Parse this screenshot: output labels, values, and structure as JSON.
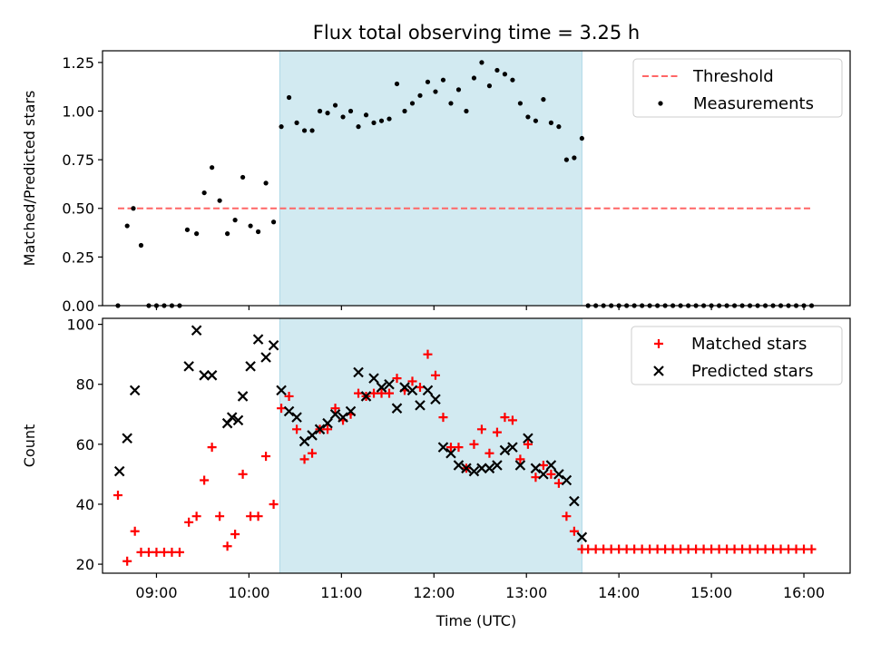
{
  "title": "Flux total observing time = 3.25 h",
  "colors": {
    "highlight": "#add8e6",
    "threshold": "#ff6666",
    "measurements": "#000000",
    "matched": "#ff0000",
    "predicted": "#000000"
  },
  "chart_data": [
    {
      "type": "scatter",
      "ylabel": "Matched/Predicted stars",
      "xlabel": "",
      "xlim": [
        "08:25",
        "16:30"
      ],
      "ylim": [
        0,
        1.31
      ],
      "yticks": [
        0.0,
        0.25,
        0.5,
        0.75,
        1.0,
        1.25
      ],
      "ytick_labels": [
        "0.00",
        "0.25",
        "0.50",
        "0.75",
        "1.00",
        "1.25"
      ],
      "highlight_span": [
        "10:20",
        "13:36"
      ],
      "legend": {
        "position": "top-right",
        "entries": [
          "Threshold",
          "Measurements"
        ]
      },
      "threshold": {
        "name": "Threshold",
        "y": 0.5,
        "x": [
          "08:35",
          "16:05"
        ],
        "style": "dashed"
      },
      "series": [
        {
          "name": "Measurements",
          "marker": "dot",
          "points": [
            [
              "08:35",
              0.0
            ],
            [
              "08:41",
              0.41
            ],
            [
              "08:45",
              0.5
            ],
            [
              "08:50",
              0.31
            ],
            [
              "08:55",
              0.0
            ],
            [
              "09:00",
              0.0
            ],
            [
              "09:05",
              0.0
            ],
            [
              "09:10",
              0.0
            ],
            [
              "09:15",
              0.0
            ],
            [
              "09:20",
              0.39
            ],
            [
              "09:26",
              0.37
            ],
            [
              "09:31",
              0.58
            ],
            [
              "09:36",
              0.71
            ],
            [
              "09:41",
              0.54
            ],
            [
              "09:46",
              0.37
            ],
            [
              "09:51",
              0.44
            ],
            [
              "09:56",
              0.66
            ],
            [
              "10:01",
              0.41
            ],
            [
              "10:06",
              0.38
            ],
            [
              "10:11",
              0.63
            ],
            [
              "10:16",
              0.43
            ],
            [
              "10:21",
              0.92
            ],
            [
              "10:26",
              1.07
            ],
            [
              "10:31",
              0.94
            ],
            [
              "10:36",
              0.9
            ],
            [
              "10:41",
              0.9
            ],
            [
              "10:46",
              1.0
            ],
            [
              "10:51",
              0.99
            ],
            [
              "10:56",
              1.03
            ],
            [
              "11:01",
              0.97
            ],
            [
              "11:06",
              1.0
            ],
            [
              "11:11",
              0.92
            ],
            [
              "11:16",
              0.98
            ],
            [
              "11:21",
              0.94
            ],
            [
              "11:26",
              0.95
            ],
            [
              "11:31",
              0.96
            ],
            [
              "11:36",
              1.14
            ],
            [
              "11:41",
              1.0
            ],
            [
              "11:46",
              1.04
            ],
            [
              "11:51",
              1.08
            ],
            [
              "11:56",
              1.15
            ],
            [
              "12:01",
              1.1
            ],
            [
              "12:06",
              1.16
            ],
            [
              "12:11",
              1.04
            ],
            [
              "12:16",
              1.11
            ],
            [
              "12:21",
              1.0
            ],
            [
              "12:26",
              1.17
            ],
            [
              "12:31",
              1.25
            ],
            [
              "12:36",
              1.13
            ],
            [
              "12:41",
              1.21
            ],
            [
              "12:46",
              1.19
            ],
            [
              "12:51",
              1.16
            ],
            [
              "12:56",
              1.04
            ],
            [
              "13:01",
              0.97
            ],
            [
              "13:06",
              0.95
            ],
            [
              "13:11",
              1.06
            ],
            [
              "13:16",
              0.94
            ],
            [
              "13:21",
              0.92
            ],
            [
              "13:26",
              0.75
            ],
            [
              "13:31",
              0.76
            ],
            [
              "13:36",
              0.86
            ],
            [
              "13:40",
              0.0
            ],
            [
              "13:45",
              0.0
            ],
            [
              "13:50",
              0.0
            ],
            [
              "13:55",
              0.0
            ],
            [
              "14:00",
              0.0
            ],
            [
              "14:05",
              0.0
            ],
            [
              "14:10",
              0.0
            ],
            [
              "14:15",
              0.0
            ],
            [
              "14:20",
              0.0
            ],
            [
              "14:25",
              0.0
            ],
            [
              "14:30",
              0.0
            ],
            [
              "14:35",
              0.0
            ],
            [
              "14:40",
              0.0
            ],
            [
              "14:45",
              0.0
            ],
            [
              "14:50",
              0.0
            ],
            [
              "14:55",
              0.0
            ],
            [
              "15:00",
              0.0
            ],
            [
              "15:05",
              0.0
            ],
            [
              "15:10",
              0.0
            ],
            [
              "15:15",
              0.0
            ],
            [
              "15:20",
              0.0
            ],
            [
              "15:25",
              0.0
            ],
            [
              "15:30",
              0.0
            ],
            [
              "15:35",
              0.0
            ],
            [
              "15:40",
              0.0
            ],
            [
              "15:45",
              0.0
            ],
            [
              "15:50",
              0.0
            ],
            [
              "15:55",
              0.0
            ],
            [
              "16:00",
              0.0
            ],
            [
              "16:05",
              0.0
            ]
          ]
        }
      ]
    },
    {
      "type": "scatter",
      "ylabel": "Count",
      "xlabel": "Time (UTC)",
      "xlim": [
        "08:25",
        "16:30"
      ],
      "ylim": [
        17,
        102
      ],
      "yticks": [
        20,
        40,
        60,
        80,
        100
      ],
      "ytick_labels": [
        "20",
        "40",
        "60",
        "80",
        "100"
      ],
      "xticks": [
        "09:00",
        "10:00",
        "11:00",
        "12:00",
        "13:00",
        "14:00",
        "15:00",
        "16:00"
      ],
      "xtick_labels": [
        "09:00",
        "10:00",
        "11:00",
        "12:00",
        "13:00",
        "14:00",
        "15:00",
        "16:00"
      ],
      "highlight_span": [
        "10:20",
        "13:36"
      ],
      "legend": {
        "position": "top-right",
        "entries": [
          "Matched stars",
          "Predicted stars"
        ]
      },
      "series": [
        {
          "name": "Matched stars",
          "marker": "plus",
          "points": [
            [
              "08:35",
              43
            ],
            [
              "08:41",
              21
            ],
            [
              "08:46",
              31
            ],
            [
              "08:50",
              24
            ],
            [
              "08:55",
              24
            ],
            [
              "09:00",
              24
            ],
            [
              "09:05",
              24
            ],
            [
              "09:10",
              24
            ],
            [
              "09:15",
              24
            ],
            [
              "09:21",
              34
            ],
            [
              "09:26",
              36
            ],
            [
              "09:31",
              48
            ],
            [
              "09:36",
              59
            ],
            [
              "09:41",
              36
            ],
            [
              "09:46",
              26
            ],
            [
              "09:51",
              30
            ],
            [
              "09:56",
              50
            ],
            [
              "10:01",
              36
            ],
            [
              "10:06",
              36
            ],
            [
              "10:11",
              56
            ],
            [
              "10:16",
              40
            ],
            [
              "10:21",
              72
            ],
            [
              "10:26",
              76
            ],
            [
              "10:31",
              65
            ],
            [
              "10:36",
              55
            ],
            [
              "10:41",
              57
            ],
            [
              "10:46",
              65
            ],
            [
              "10:51",
              65
            ],
            [
              "10:56",
              72
            ],
            [
              "11:01",
              68
            ],
            [
              "11:06",
              70
            ],
            [
              "11:11",
              77
            ],
            [
              "11:16",
              76
            ],
            [
              "11:21",
              77
            ],
            [
              "11:26",
              77
            ],
            [
              "11:31",
              77
            ],
            [
              "11:36",
              82
            ],
            [
              "11:41",
              78
            ],
            [
              "11:46",
              81
            ],
            [
              "11:51",
              79
            ],
            [
              "11:56",
              90
            ],
            [
              "12:01",
              83
            ],
            [
              "12:06",
              69
            ],
            [
              "12:11",
              59
            ],
            [
              "12:16",
              59
            ],
            [
              "12:21",
              52
            ],
            [
              "12:26",
              60
            ],
            [
              "12:31",
              65
            ],
            [
              "12:36",
              57
            ],
            [
              "12:41",
              64
            ],
            [
              "12:46",
              69
            ],
            [
              "12:51",
              68
            ],
            [
              "12:56",
              55
            ],
            [
              "13:01",
              60
            ],
            [
              "13:06",
              49
            ],
            [
              "13:11",
              53
            ],
            [
              "13:16",
              50
            ],
            [
              "13:21",
              47
            ],
            [
              "13:26",
              36
            ],
            [
              "13:31",
              31
            ],
            [
              "13:36",
              25
            ],
            [
              "13:40",
              25
            ],
            [
              "13:45",
              25
            ],
            [
              "13:50",
              25
            ],
            [
              "13:55",
              25
            ],
            [
              "14:00",
              25
            ],
            [
              "14:05",
              25
            ],
            [
              "14:10",
              25
            ],
            [
              "14:15",
              25
            ],
            [
              "14:20",
              25
            ],
            [
              "14:25",
              25
            ],
            [
              "14:30",
              25
            ],
            [
              "14:35",
              25
            ],
            [
              "14:40",
              25
            ],
            [
              "14:45",
              25
            ],
            [
              "14:50",
              25
            ],
            [
              "14:55",
              25
            ],
            [
              "15:00",
              25
            ],
            [
              "15:05",
              25
            ],
            [
              "15:10",
              25
            ],
            [
              "15:15",
              25
            ],
            [
              "15:20",
              25
            ],
            [
              "15:25",
              25
            ],
            [
              "15:30",
              25
            ],
            [
              "15:35",
              25
            ],
            [
              "15:40",
              25
            ],
            [
              "15:45",
              25
            ],
            [
              "15:50",
              25
            ],
            [
              "15:55",
              25
            ],
            [
              "16:00",
              25
            ],
            [
              "16:05",
              25
            ]
          ]
        },
        {
          "name": "Predicted stars",
          "marker": "x",
          "points": [
            [
              "08:36",
              51
            ],
            [
              "08:41",
              62
            ],
            [
              "08:46",
              78
            ],
            [
              "09:21",
              86
            ],
            [
              "09:26",
              98
            ],
            [
              "09:31",
              83
            ],
            [
              "09:36",
              83
            ],
            [
              "09:46",
              67
            ],
            [
              "09:49",
              69
            ],
            [
              "09:53",
              68
            ],
            [
              "09:56",
              76
            ],
            [
              "10:01",
              86
            ],
            [
              "10:06",
              95
            ],
            [
              "10:11",
              89
            ],
            [
              "10:16",
              93
            ],
            [
              "10:21",
              78
            ],
            [
              "10:26",
              71
            ],
            [
              "10:31",
              69
            ],
            [
              "10:36",
              61
            ],
            [
              "10:41",
              63
            ],
            [
              "10:46",
              65
            ],
            [
              "10:51",
              67
            ],
            [
              "10:56",
              70
            ],
            [
              "11:01",
              69
            ],
            [
              "11:06",
              71
            ],
            [
              "11:11",
              84
            ],
            [
              "11:16",
              76
            ],
            [
              "11:21",
              82
            ],
            [
              "11:26",
              79
            ],
            [
              "11:31",
              80
            ],
            [
              "11:36",
              72
            ],
            [
              "11:41",
              79
            ],
            [
              "11:46",
              78
            ],
            [
              "11:51",
              73
            ],
            [
              "11:56",
              78
            ],
            [
              "12:01",
              75
            ],
            [
              "12:06",
              59
            ],
            [
              "12:11",
              57
            ],
            [
              "12:16",
              53
            ],
            [
              "12:21",
              52
            ],
            [
              "12:26",
              51
            ],
            [
              "12:31",
              52
            ],
            [
              "12:36",
              52
            ],
            [
              "12:41",
              53
            ],
            [
              "12:46",
              58
            ],
            [
              "12:51",
              59
            ],
            [
              "12:56",
              53
            ],
            [
              "13:01",
              62
            ],
            [
              "13:06",
              52
            ],
            [
              "13:11",
              50
            ],
            [
              "13:16",
              53
            ],
            [
              "13:21",
              50
            ],
            [
              "13:26",
              48
            ],
            [
              "13:31",
              41
            ],
            [
              "13:36",
              29
            ]
          ]
        }
      ]
    }
  ]
}
